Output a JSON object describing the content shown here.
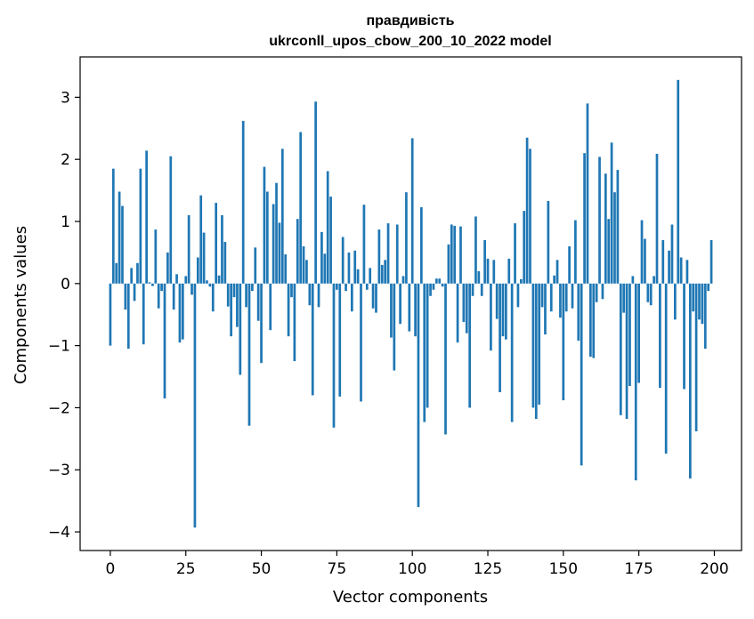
{
  "chart_data": {
    "type": "bar",
    "title": "правдивість",
    "subtitle": "ukrconll_upos_cbow_200_10_2022 model",
    "xlabel": "Vector components",
    "ylabel": "Components values",
    "xlim": [
      -10,
      209
    ],
    "ylim": [
      -4.3,
      3.65
    ],
    "xticks": [
      0,
      25,
      50,
      75,
      100,
      125,
      150,
      175,
      200
    ],
    "xtick_labels": [
      "0",
      "25",
      "50",
      "75",
      "100",
      "125",
      "150",
      "175",
      "200"
    ],
    "yticks": [
      -4,
      -3,
      -2,
      -1,
      0,
      1,
      2,
      3
    ],
    "ytick_labels": [
      "−4",
      "−3",
      "−2",
      "−1",
      "0",
      "1",
      "2",
      "3"
    ],
    "bar_color": "#1f77b4",
    "grid": false,
    "values": [
      -1.0,
      1.85,
      0.33,
      1.48,
      1.25,
      -0.42,
      -1.05,
      0.25,
      -0.28,
      0.33,
      1.85,
      -0.98,
      2.14,
      0.02,
      -0.04,
      0.87,
      -0.4,
      -0.12,
      -1.85,
      0.5,
      2.05,
      -0.42,
      0.15,
      -0.95,
      -0.9,
      0.12,
      1.1,
      -0.18,
      -3.93,
      0.42,
      1.42,
      0.82,
      0.05,
      -0.05,
      -0.45,
      1.3,
      0.13,
      1.1,
      0.67,
      -0.37,
      -0.85,
      -0.22,
      -0.7,
      -1.47,
      2.62,
      -0.38,
      -2.29,
      -0.12,
      0.58,
      -0.6,
      -1.28,
      1.88,
      1.48,
      -0.75,
      1.28,
      1.62,
      0.98,
      2.17,
      0.47,
      -0.85,
      -0.22,
      -1.25,
      1.04,
      2.44,
      0.6,
      0.38,
      -0.35,
      -1.8,
      2.93,
      -0.38,
      0.83,
      0.48,
      1.81,
      1.4,
      -2.32,
      -0.1,
      -1.82,
      0.75,
      -0.12,
      0.5,
      -0.45,
      0.53,
      0.23,
      -1.9,
      1.27,
      -0.1,
      0.25,
      -0.4,
      -0.47,
      0.87,
      0.3,
      0.38,
      0.97,
      -0.87,
      -1.4,
      0.95,
      -0.65,
      0.12,
      1.47,
      -0.77,
      2.34,
      -0.85,
      -3.6,
      1.23,
      -2.23,
      -2.0,
      -0.2,
      -0.1,
      0.08,
      0.08,
      -0.05,
      -2.43,
      0.63,
      0.95,
      0.93,
      -0.95,
      0.92,
      -0.62,
      -0.8,
      -2.0,
      -0.2,
      1.08,
      0.2,
      -0.2,
      0.7,
      0.4,
      -1.08,
      0.38,
      -0.57,
      -1.75,
      -0.85,
      -0.9,
      0.4,
      -2.23,
      0.97,
      -0.38,
      0.07,
      1.17,
      2.35,
      2.17,
      -2.0,
      -2.18,
      -1.95,
      -0.38,
      -0.82,
      1.33,
      -0.45,
      0.13,
      0.38,
      -0.55,
      -1.88,
      -0.45,
      0.6,
      -0.4,
      1.02,
      -0.92,
      -2.93,
      2.1,
      2.9,
      -1.18,
      -1.2,
      -0.3,
      2.04,
      -0.25,
      1.77,
      1.04,
      2.27,
      1.47,
      1.83,
      -2.12,
      -0.47,
      -2.18,
      -1.65,
      0.12,
      -3.17,
      -1.6,
      1.02,
      0.72,
      -0.3,
      -0.35,
      0.12,
      2.09,
      -1.68,
      0.7,
      -2.74,
      0.53,
      0.95,
      -0.58,
      3.28,
      0.42,
      -1.7,
      0.38,
      -3.14,
      -0.45,
      -2.38,
      -0.58,
      -0.65,
      -1.05,
      -0.12,
      0.7
    ]
  }
}
